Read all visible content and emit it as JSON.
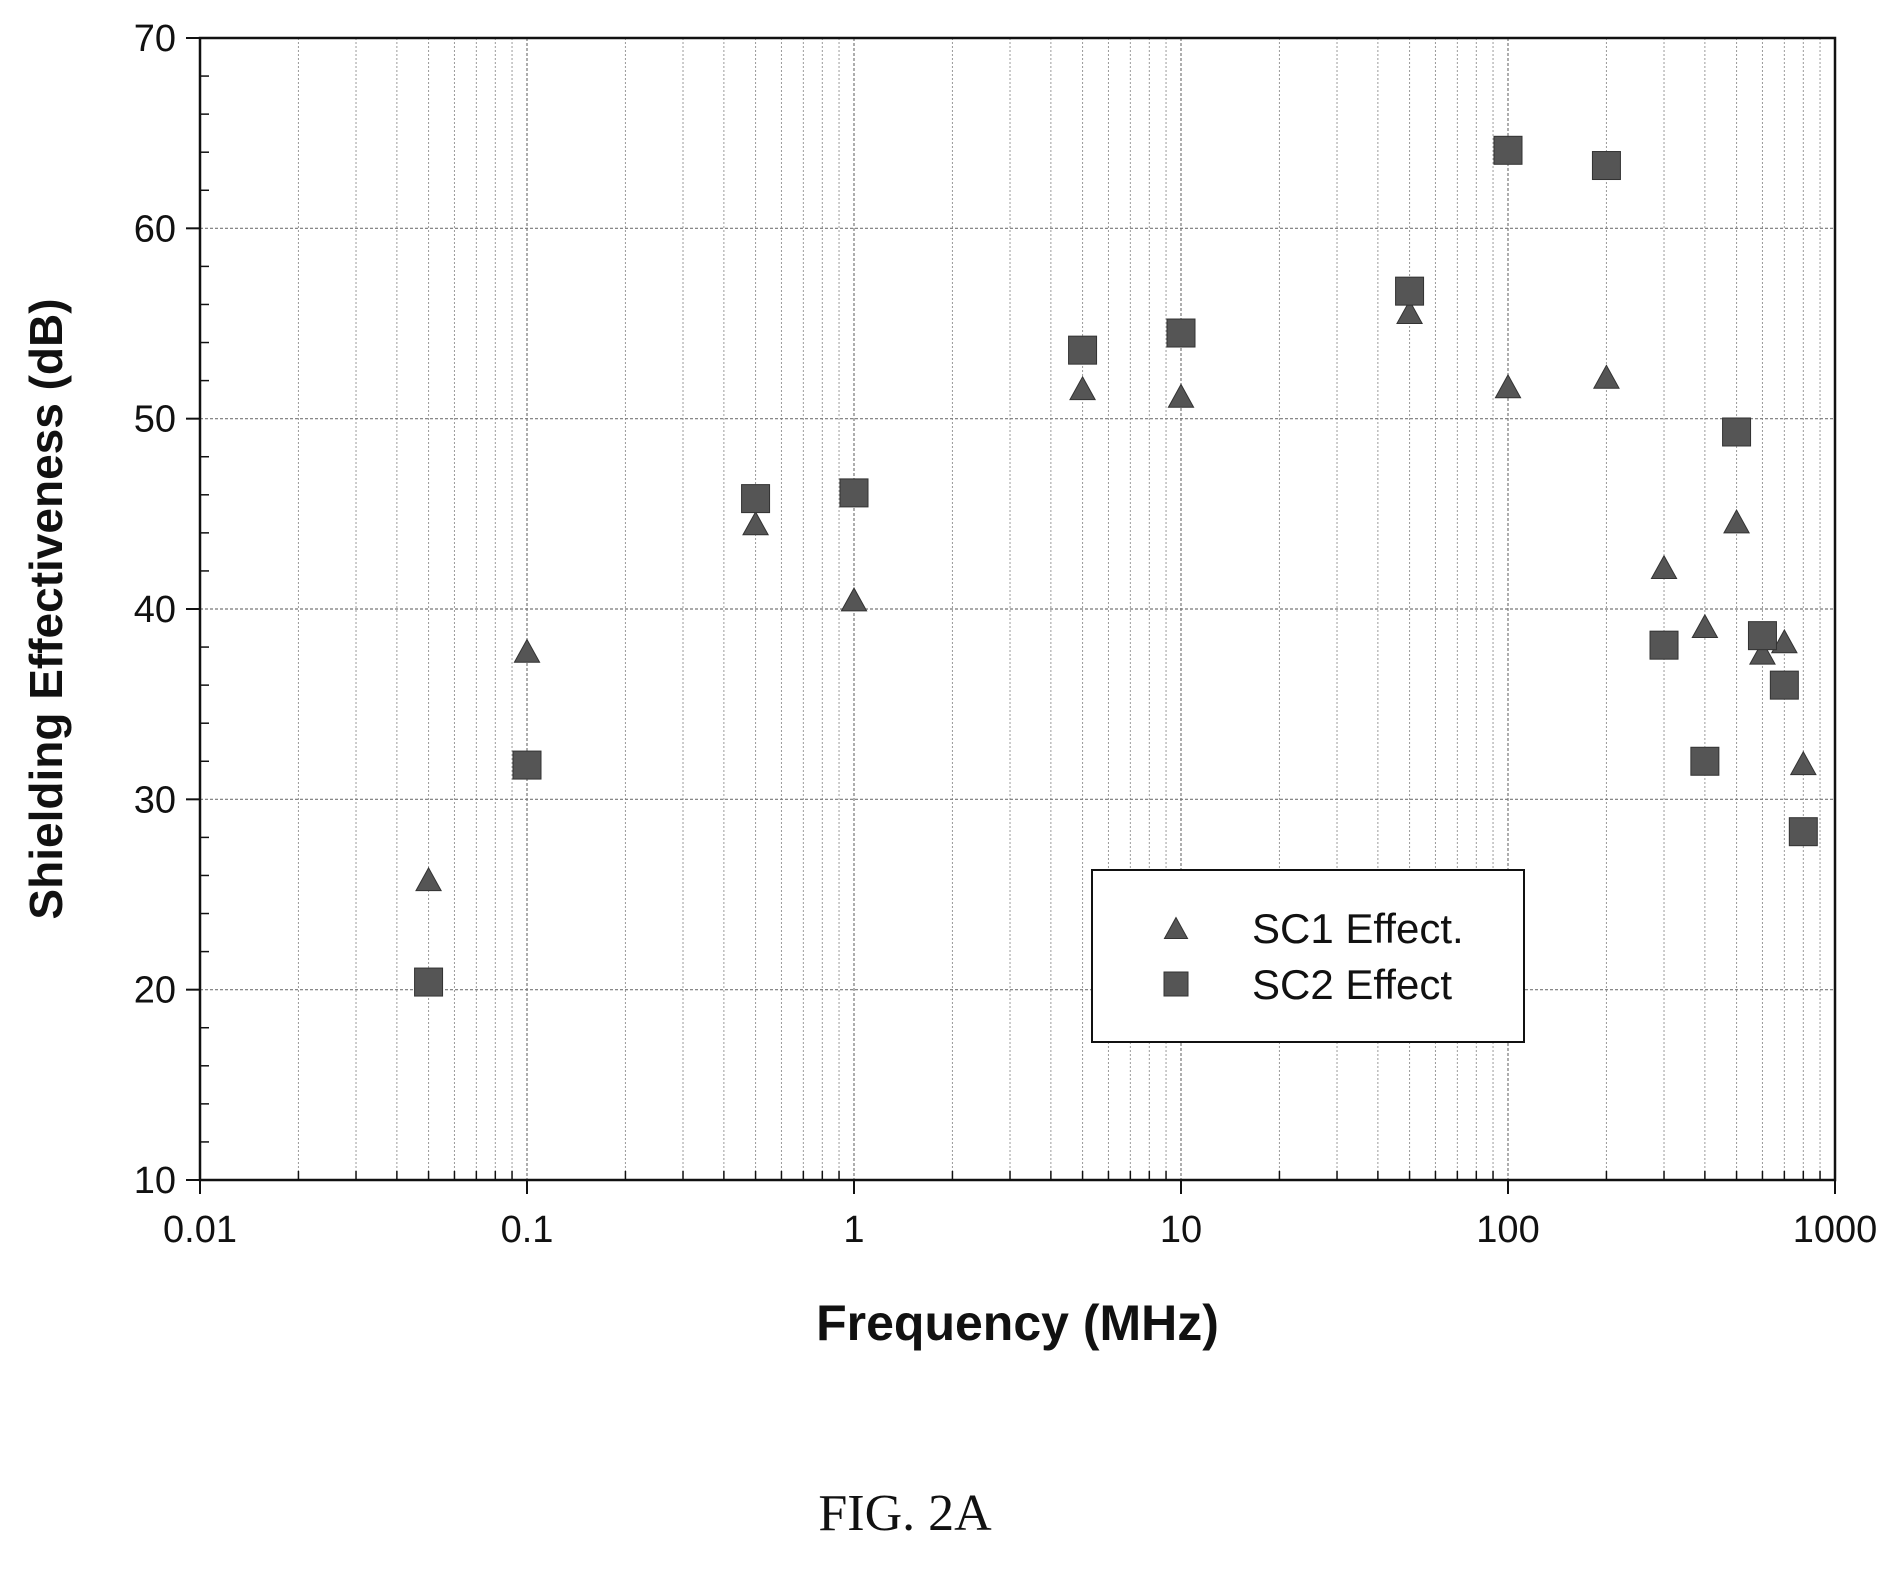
{
  "chart_data": {
    "type": "scatter",
    "xscale": "log",
    "xlim": [
      0.01,
      1000
    ],
    "ylim": [
      10,
      70
    ],
    "xlabel": "Frequency (MHz)",
    "ylabel": "Shielding Effectiveness (dB)",
    "xticks": [
      0.01,
      0.1,
      1,
      10,
      100,
      1000
    ],
    "xtick_labels": [
      "0.01",
      "0.1",
      "1",
      "10",
      "100",
      "1000"
    ],
    "yticks": [
      10,
      20,
      30,
      40,
      50,
      60,
      70
    ],
    "ytick_labels": [
      "10",
      "20",
      "30",
      "40",
      "50",
      "60",
      "70"
    ],
    "grid": true,
    "legend_position": "lower-center",
    "series": [
      {
        "name": "SC1 Effect.",
        "marker": "triangle",
        "color": "#555555",
        "x": [
          0.05,
          0.1,
          0.5,
          1,
          5,
          10,
          50,
          100,
          200,
          300,
          400,
          500,
          600,
          700,
          800
        ],
        "y": [
          25.8,
          37.8,
          44.5,
          40.5,
          51.6,
          51.2,
          55.6,
          51.7,
          52.2,
          42.2,
          39.1,
          44.6,
          37.7,
          38.3,
          31.9
        ]
      },
      {
        "name": "SC2 Effect",
        "marker": "square",
        "color": "#555555",
        "x": [
          0.05,
          0.1,
          0.5,
          1,
          5,
          10,
          50,
          100,
          200,
          300,
          400,
          500,
          600,
          700,
          800
        ],
        "y": [
          20.4,
          31.8,
          45.8,
          46.1,
          53.6,
          54.5,
          56.7,
          64.1,
          63.3,
          38.1,
          32.0,
          49.3,
          38.6,
          36.0,
          28.3
        ]
      }
    ]
  },
  "caption": "FIG. 2A"
}
